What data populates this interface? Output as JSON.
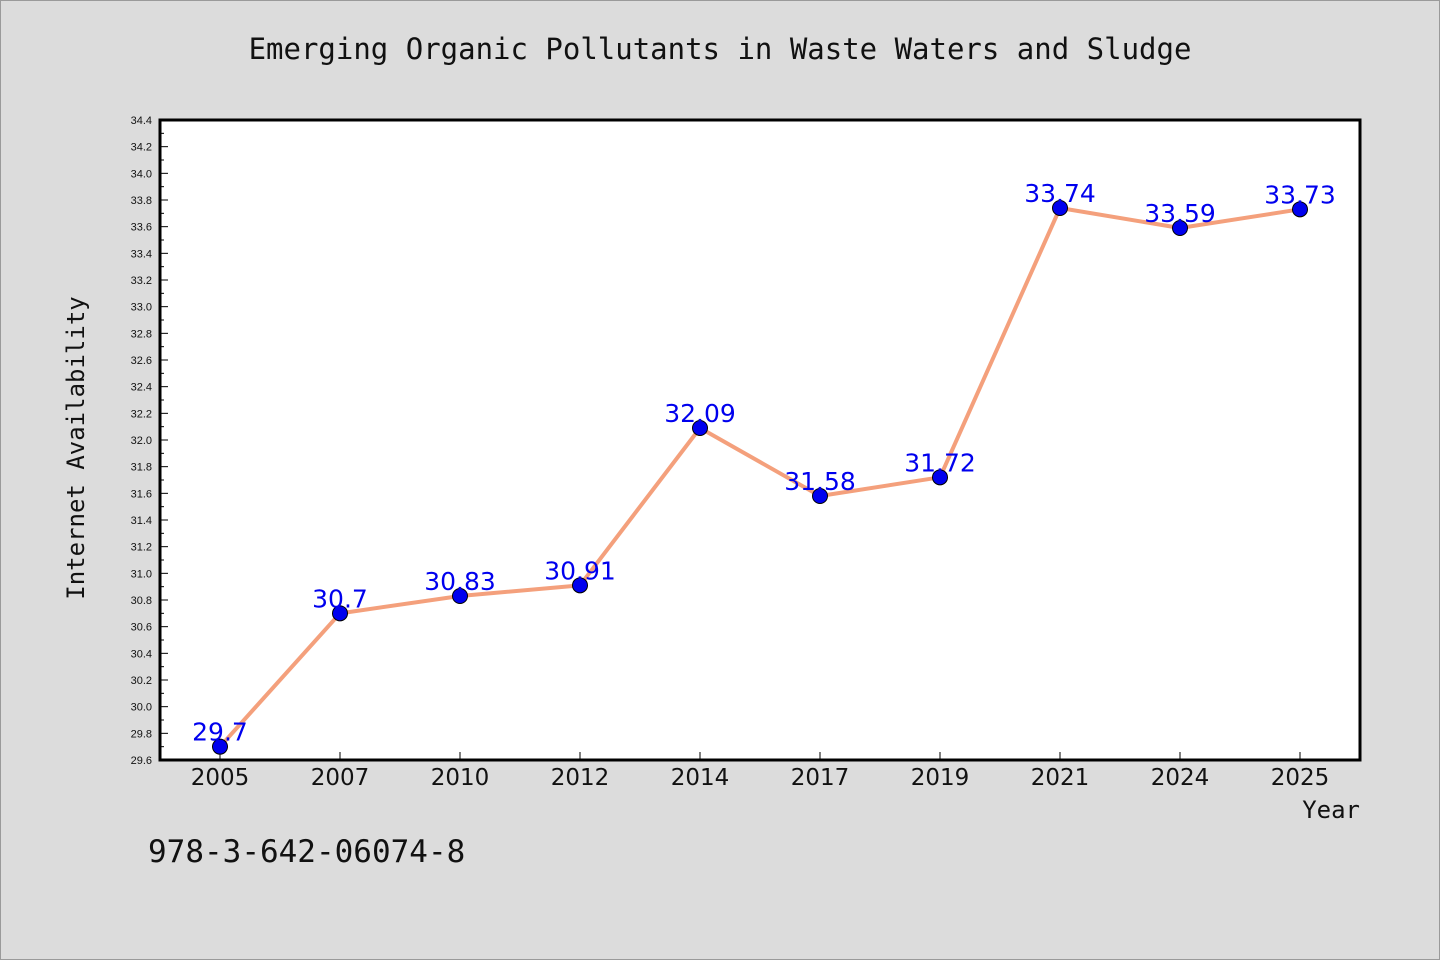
{
  "chart_data": {
    "type": "line",
    "title": "Emerging Organic Pollutants in Waste Waters and Sludge",
    "xlabel": "Year",
    "ylabel": "Internet Availability",
    "categories": [
      "2005",
      "2007",
      "2010",
      "2012",
      "2014",
      "2017",
      "2019",
      "2021",
      "2024",
      "2025"
    ],
    "series": [
      {
        "values": [
          29.7,
          30.7,
          30.83,
          30.91,
          32.09,
          31.58,
          31.72,
          33.74,
          33.59,
          33.73
        ],
        "labels": [
          "29.7",
          "30.7",
          "30.83",
          "30.91",
          "32.09",
          "31.58",
          "31.72",
          "33.74",
          "33.59",
          "33.73"
        ],
        "line_color": "#f4a07c",
        "marker_color": "#0000ee"
      }
    ],
    "ylim": [
      29.6,
      34.4
    ],
    "yticks": [
      "29.6",
      "29.8",
      "30.0",
      "30.2",
      "30.4",
      "30.6",
      "30.8",
      "31.0",
      "31.2",
      "31.4",
      "31.6",
      "31.8",
      "32.0",
      "32.2",
      "32.4",
      "32.6",
      "32.8",
      "33.0",
      "33.2",
      "33.4",
      "33.6",
      "33.8",
      "34.0",
      "34.2",
      "34.4"
    ],
    "grid": false,
    "legend": "none"
  },
  "footnote": "978-3-642-06074-8"
}
